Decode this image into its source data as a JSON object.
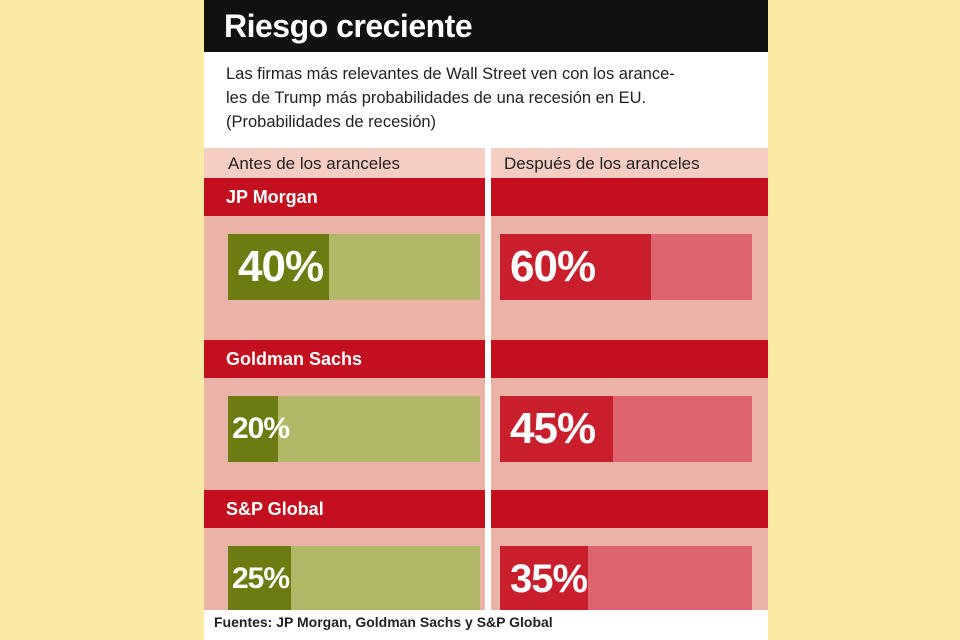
{
  "title": "Riesgo creciente",
  "subtitle_lines": [
    "Las firmas más relevantes de Wall Street ven con los arance-",
    "les de Trump más probabilidades de una recesión en EU.",
    "(Probabilidades de recesión)"
  ],
  "column_headers": {
    "before": "Antes de los aranceles",
    "after": "Después de los aranceles"
  },
  "source": "Fuentes: JP Morgan, Goldman Sachs y S&P Global",
  "colors": {
    "before_fill": "#6c7c10",
    "before_track": "#b1b867",
    "after_fill": "#c91f2c",
    "after_track": "#de6470",
    "company_bar": "#c40f1e"
  },
  "chart_data": {
    "type": "bar",
    "categories": [
      "JP Morgan",
      "Goldman Sachs",
      "S&P Global"
    ],
    "series": [
      {
        "name": "Antes de los aranceles",
        "values": [
          40,
          20,
          25
        ],
        "labels": [
          "40%",
          "20%",
          "25%"
        ]
      },
      {
        "name": "Después de los aranceles",
        "values": [
          60,
          45,
          35
        ],
        "labels": [
          "60%",
          "45%",
          "35%"
        ]
      }
    ],
    "unit": "%",
    "ylim": [
      0,
      100
    ]
  }
}
